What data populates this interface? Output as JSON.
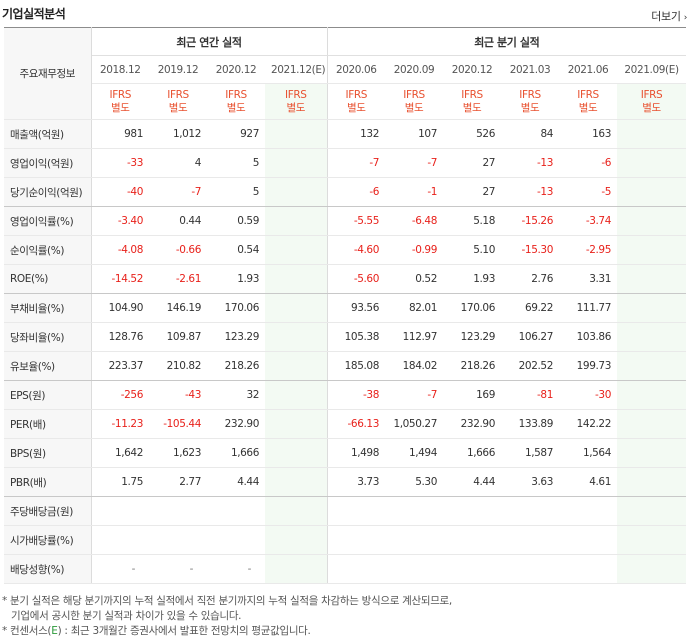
{
  "header": {
    "title": "기업실적분석",
    "more_label": "더보기"
  },
  "table": {
    "label_header": "주요재무정보",
    "annual_header": "최근 연간 실적",
    "quarter_header": "최근 분기 실적",
    "periods": [
      "2018.12",
      "2019.12",
      "2020.12",
      "2021.12(E)",
      "2020.06",
      "2020.09",
      "2020.12",
      "2021.03",
      "2021.06",
      "2021.09(E)"
    ],
    "standard_line1": "IFRS",
    "standard_line2": "별도",
    "rows": [
      {
        "label": "매출액(억원)",
        "values": [
          "981",
          "1,012",
          "927",
          "",
          "132",
          "107",
          "526",
          "84",
          "163",
          ""
        ]
      },
      {
        "label": "영업이익(억원)",
        "values": [
          "-33",
          "4",
          "5",
          "",
          "-7",
          "-7",
          "27",
          "-13",
          "-6",
          ""
        ]
      },
      {
        "label": "당기순이익(억원)",
        "values": [
          "-40",
          "-7",
          "5",
          "",
          "-6",
          "-1",
          "27",
          "-13",
          "-5",
          ""
        ]
      },
      {
        "label": "영업이익률(%)",
        "values": [
          "-3.40",
          "0.44",
          "0.59",
          "",
          "-5.55",
          "-6.48",
          "5.18",
          "-15.26",
          "-3.74",
          ""
        ]
      },
      {
        "label": "순이익률(%)",
        "values": [
          "-4.08",
          "-0.66",
          "0.54",
          "",
          "-4.60",
          "-0.99",
          "5.10",
          "-15.30",
          "-2.95",
          ""
        ]
      },
      {
        "label": "ROE(%)",
        "values": [
          "-14.52",
          "-2.61",
          "1.93",
          "",
          "-5.60",
          "0.52",
          "1.93",
          "2.76",
          "3.31",
          ""
        ]
      },
      {
        "label": "부채비율(%)",
        "values": [
          "104.90",
          "146.19",
          "170.06",
          "",
          "93.56",
          "82.01",
          "170.06",
          "69.22",
          "111.77",
          ""
        ]
      },
      {
        "label": "당좌비율(%)",
        "values": [
          "128.76",
          "109.87",
          "123.29",
          "",
          "105.38",
          "112.97",
          "123.29",
          "106.27",
          "103.86",
          ""
        ]
      },
      {
        "label": "유보율(%)",
        "values": [
          "223.37",
          "210.82",
          "218.26",
          "",
          "185.08",
          "184.02",
          "218.26",
          "202.52",
          "199.73",
          ""
        ]
      },
      {
        "label": "EPS(원)",
        "values": [
          "-256",
          "-43",
          "32",
          "",
          "-38",
          "-7",
          "169",
          "-81",
          "-30",
          ""
        ]
      },
      {
        "label": "PER(배)",
        "values": [
          "-11.23",
          "-105.44",
          "232.90",
          "",
          "-66.13",
          "1,050.27",
          "232.90",
          "133.89",
          "142.22",
          ""
        ]
      },
      {
        "label": "BPS(원)",
        "values": [
          "1,642",
          "1,623",
          "1,666",
          "",
          "1,498",
          "1,494",
          "1,666",
          "1,587",
          "1,564",
          ""
        ]
      },
      {
        "label": "PBR(배)",
        "values": [
          "1.75",
          "2.77",
          "4.44",
          "",
          "3.73",
          "5.30",
          "4.44",
          "3.63",
          "4.61",
          ""
        ]
      },
      {
        "label": "주당배당금(원)",
        "values": [
          "",
          "",
          "",
          "",
          "",
          "",
          "",
          "",
          "",
          ""
        ]
      },
      {
        "label": "시가배당률(%)",
        "values": [
          "",
          "",
          "",
          "",
          "",
          "",
          "",
          "",
          "",
          ""
        ]
      },
      {
        "label": "배당성향(%)",
        "values": [
          "-",
          "-",
          "-",
          "",
          "",
          "",
          "",
          "",
          "",
          ""
        ]
      }
    ]
  },
  "notes": {
    "line1": "* 분기 실적은 해당 분기까지의 누적 실적에서 직전 분기까지의 누적 실적을 차감하는 방식으로 계산되므로,",
    "line2": "기업에서 공시한 분기 실적과 차이가 있을 수 있습니다.",
    "line3_prefix": "* 컨센서스(",
    "line3_e": "E",
    "line3_suffix": ") : 최근 3개월간 증권사에서 발표한 전망치의 평균값입니다."
  },
  "colors": {
    "negative": "#e8211b",
    "standard": "#e8502f",
    "estimate_bg": "#f3faf3",
    "label_bg": "#f7f7f7",
    "consensus_e": "#2b9a3a"
  }
}
